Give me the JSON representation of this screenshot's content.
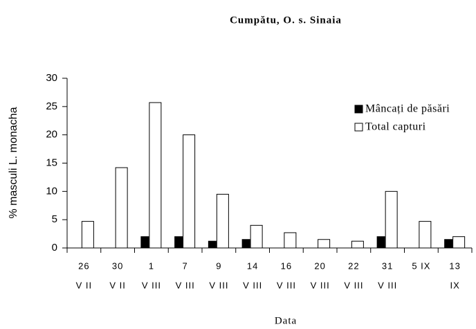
{
  "chart_data": {
    "type": "bar",
    "title": "Cumpătu, O. s. Sinaia",
    "xlabel": "Data",
    "ylabel": "% masculi L. monacha",
    "categories": [
      [
        "26",
        "V II"
      ],
      [
        "30",
        "V II"
      ],
      [
        "1",
        "V III"
      ],
      [
        "7",
        "V III"
      ],
      [
        "9",
        "V III"
      ],
      [
        "14",
        "V III"
      ],
      [
        "16",
        "V III"
      ],
      [
        "20",
        "V III"
      ],
      [
        "22",
        "V III"
      ],
      [
        "31",
        "V III"
      ],
      [
        "5 IX"
      ],
      [
        "13",
        "IX"
      ]
    ],
    "series": [
      {
        "name": "Mâncați de păsări",
        "color": "#000000",
        "values": [
          0,
          0,
          2,
          2,
          1.2,
          1.5,
          0,
          0,
          0,
          2,
          0,
          1.5
        ]
      },
      {
        "name": "Total capturi",
        "color": "#ffffff",
        "values": [
          4.7,
          14.2,
          25.7,
          20,
          9.5,
          4,
          2.7,
          1.5,
          1.2,
          10,
          4.7,
          2
        ]
      }
    ],
    "ylim": [
      0,
      30
    ],
    "yticks": [
      0,
      5,
      10,
      15,
      20,
      25,
      30
    ],
    "legend": "upper right",
    "grid": false
  }
}
